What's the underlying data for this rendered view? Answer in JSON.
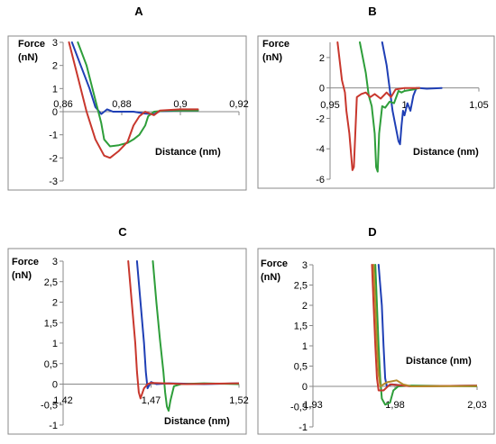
{
  "chart_data": [
    {
      "panel": "A",
      "type": "line",
      "ylabel": "Force\n(nN)",
      "xlabel": "Distance (nm)",
      "ylim": [
        -3,
        3
      ],
      "xlim": [
        0.86,
        0.92
      ],
      "yticks": [
        3,
        2,
        1,
        0,
        -1,
        -2,
        -3
      ],
      "xticks": [
        "0,86",
        "0,88",
        "0,9",
        "0,92"
      ],
      "xtick_values": [
        0.86,
        0.88,
        0.9,
        0.92
      ],
      "ytick_labels": [
        "3",
        "2",
        "1",
        "0",
        "-1",
        "-2",
        "-3"
      ],
      "grid": false,
      "series": [
        {
          "color": "#1f3fb5",
          "points": [
            [
              0.863,
              3
            ],
            [
              0.866,
              2
            ],
            [
              0.869,
              1
            ],
            [
              0.871,
              0.2
            ],
            [
              0.873,
              -0.1
            ],
            [
              0.875,
              0.1
            ],
            [
              0.877,
              0
            ],
            [
              0.88,
              0
            ],
            [
              0.884,
              0
            ],
            [
              0.888,
              -0.08
            ],
            [
              0.891,
              -0.1
            ],
            [
              0.893,
              0.02
            ],
            [
              0.9,
              0.05
            ],
            [
              0.906,
              0.05
            ]
          ]
        },
        {
          "color": "#2e9e3a",
          "points": [
            [
              0.865,
              3
            ],
            [
              0.868,
              2
            ],
            [
              0.871,
              0.5
            ],
            [
              0.873,
              -0.5
            ],
            [
              0.874,
              -1.2
            ],
            [
              0.876,
              -1.5
            ],
            [
              0.879,
              -1.45
            ],
            [
              0.882,
              -1.35
            ],
            [
              0.884,
              -1.2
            ],
            [
              0.886,
              -1.0
            ],
            [
              0.888,
              -0.6
            ],
            [
              0.889,
              -0.2
            ],
            [
              0.891,
              0
            ],
            [
              0.895,
              0.05
            ],
            [
              0.906,
              0.05
            ]
          ]
        },
        {
          "color": "#c8372d",
          "points": [
            [
              0.862,
              3
            ],
            [
              0.865,
              1.5
            ],
            [
              0.868,
              0
            ],
            [
              0.871,
              -1.2
            ],
            [
              0.874,
              -1.9
            ],
            [
              0.876,
              -2.0
            ],
            [
              0.879,
              -1.7
            ],
            [
              0.882,
              -1.3
            ],
            [
              0.884,
              -0.6
            ],
            [
              0.886,
              -0.2
            ],
            [
              0.888,
              0
            ],
            [
              0.891,
              -0.15
            ],
            [
              0.893,
              0.05
            ],
            [
              0.9,
              0.1
            ],
            [
              0.906,
              0.1
            ]
          ]
        }
      ]
    },
    {
      "panel": "B",
      "type": "line",
      "ylabel": "Force\n(nN)",
      "xlabel": "Distance (nm)",
      "ylim": [
        -6,
        3
      ],
      "xlim": [
        0.95,
        1.05
      ],
      "yticks": [
        2,
        0,
        -2,
        -4,
        -6
      ],
      "xticks": [
        "0,95",
        "1",
        "1,05"
      ],
      "xtick_values": [
        0.95,
        1.0,
        1.05
      ],
      "ytick_labels": [
        "2",
        "0",
        "-2",
        "-4",
        "-6"
      ],
      "grid": false,
      "series": [
        {
          "color": "#1f3fb5",
          "points": [
            [
              0.985,
              3
            ],
            [
              0.988,
              1.5
            ],
            [
              0.99,
              0
            ],
            [
              0.992,
              -1.5
            ],
            [
              0.994,
              -2.5
            ],
            [
              0.996,
              -3.5
            ],
            [
              0.997,
              -3.7
            ],
            [
              0.998,
              -2.5
            ],
            [
              0.999,
              -1.5
            ],
            [
              1.0,
              -1.8
            ],
            [
              1.002,
              -1.0
            ],
            [
              1.004,
              -1.5
            ],
            [
              1.006,
              -0.5
            ],
            [
              1.008,
              0
            ],
            [
              1.01,
              0
            ],
            [
              1.015,
              -0.05
            ],
            [
              1.025,
              0
            ]
          ]
        },
        {
          "color": "#2e9e3a",
          "points": [
            [
              0.97,
              3
            ],
            [
              0.974,
              1
            ],
            [
              0.976,
              -0.5
            ],
            [
              0.978,
              -1.2
            ],
            [
              0.98,
              -3
            ],
            [
              0.981,
              -5.2
            ],
            [
              0.982,
              -5.5
            ],
            [
              0.983,
              -3
            ],
            [
              0.985,
              -1.2
            ],
            [
              0.987,
              -1.3
            ],
            [
              0.99,
              -0.9
            ],
            [
              0.993,
              -1.0
            ],
            [
              0.996,
              -0.2
            ],
            [
              0.998,
              -0.3
            ],
            [
              1.0,
              -0.2
            ],
            [
              1.006,
              -0.1
            ],
            [
              1.01,
              0
            ]
          ]
        },
        {
          "color": "#c8372d",
          "points": [
            [
              0.955,
              3
            ],
            [
              0.958,
              0.5
            ],
            [
              0.96,
              -0.3
            ],
            [
              0.961,
              -1.5
            ],
            [
              0.963,
              -3
            ],
            [
              0.965,
              -5.4
            ],
            [
              0.966,
              -5.2
            ],
            [
              0.968,
              -0.6
            ],
            [
              0.971,
              -0.4
            ],
            [
              0.974,
              -0.3
            ],
            [
              0.977,
              -0.6
            ],
            [
              0.98,
              -0.4
            ],
            [
              0.984,
              -0.7
            ],
            [
              0.988,
              -0.3
            ],
            [
              0.991,
              -0.6
            ],
            [
              0.994,
              -0.1
            ],
            [
              1.0,
              0
            ],
            [
              1.01,
              0
            ]
          ]
        }
      ]
    },
    {
      "panel": "C",
      "type": "line",
      "ylabel": "Force\n(nN)",
      "xlabel": "Distance (nm)",
      "ylim": [
        -1,
        3
      ],
      "xlim": [
        1.42,
        1.52
      ],
      "yticks": [
        3,
        2.5,
        2,
        1.5,
        1,
        0.5,
        0,
        -0.5,
        -1
      ],
      "xticks": [
        "1,42",
        "1,47",
        "1,52"
      ],
      "xtick_values": [
        1.42,
        1.47,
        1.52
      ],
      "ytick_labels": [
        "3",
        "2,5",
        "2",
        "1,5",
        "1",
        "0,5",
        "0",
        "-0,5",
        "-1"
      ],
      "grid": false,
      "series": [
        {
          "color": "#1f3fb5",
          "points": [
            [
              1.462,
              3
            ],
            [
              1.464,
              2
            ],
            [
              1.466,
              1
            ],
            [
              1.467,
              0.3
            ],
            [
              1.468,
              -0.1
            ],
            [
              1.47,
              0.05
            ],
            [
              1.473,
              0
            ],
            [
              1.48,
              0.02
            ],
            [
              1.5,
              0
            ],
            [
              1.52,
              0.02
            ]
          ]
        },
        {
          "color": "#2e9e3a",
          "points": [
            [
              1.471,
              3
            ],
            [
              1.473,
              2
            ],
            [
              1.475,
              1.1
            ],
            [
              1.477,
              0.3
            ],
            [
              1.478,
              -0.2
            ],
            [
              1.479,
              -0.55
            ],
            [
              1.48,
              -0.65
            ],
            [
              1.481,
              -0.4
            ],
            [
              1.483,
              -0.05
            ],
            [
              1.487,
              0
            ],
            [
              1.5,
              0.02
            ],
            [
              1.52,
              0
            ]
          ]
        },
        {
          "color": "#c8372d",
          "points": [
            [
              1.457,
              3
            ],
            [
              1.459,
              2
            ],
            [
              1.461,
              1
            ],
            [
              1.462,
              0.3
            ],
            [
              1.463,
              -0.2
            ],
            [
              1.464,
              -0.35
            ],
            [
              1.466,
              -0.1
            ],
            [
              1.468,
              0
            ],
            [
              1.47,
              0.03
            ],
            [
              1.49,
              0
            ],
            [
              1.52,
              0.02
            ]
          ]
        }
      ]
    },
    {
      "panel": "D",
      "type": "line",
      "ylabel": "Force\n(nN)",
      "xlabel": "Distance (nm)",
      "ylim": [
        -1,
        3
      ],
      "xlim": [
        1.93,
        2.03
      ],
      "yticks": [
        3,
        2.5,
        2,
        1.5,
        1,
        0.5,
        0,
        -0.5,
        -1
      ],
      "xticks": [
        "1,93",
        "1,98",
        "2,03"
      ],
      "xtick_values": [
        1.93,
        1.98,
        2.03
      ],
      "ytick_labels": [
        "3",
        "2,5",
        "2",
        "1,5",
        "1",
        "0,5",
        "0",
        "-0,5",
        "-1"
      ],
      "grid": false,
      "series": [
        {
          "color": "#1f3fb5",
          "points": [
            [
              1.97,
              3
            ],
            [
              1.972,
              2
            ],
            [
              1.973,
              1
            ],
            [
              1.974,
              0.2
            ],
            [
              1.975,
              0
            ],
            [
              1.978,
              0.05
            ],
            [
              1.99,
              0
            ],
            [
              2.03,
              0.02
            ]
          ]
        },
        {
          "color": "#2e9e3a",
          "points": [
            [
              1.968,
              3
            ],
            [
              1.969,
              2
            ],
            [
              1.97,
              1
            ],
            [
              1.971,
              0.2
            ],
            [
              1.972,
              -0.3
            ],
            [
              1.974,
              -0.45
            ],
            [
              1.977,
              -0.4
            ],
            [
              1.979,
              -0.1
            ],
            [
              1.982,
              0
            ],
            [
              1.99,
              0.02
            ],
            [
              2.03,
              0
            ]
          ]
        },
        {
          "color": "#c8372d",
          "points": [
            [
              1.966,
              3
            ],
            [
              1.967,
              2
            ],
            [
              1.968,
              1
            ],
            [
              1.969,
              0.2
            ],
            [
              1.97,
              -0.1
            ],
            [
              1.973,
              -0.1
            ],
            [
              1.977,
              0.05
            ],
            [
              1.99,
              0
            ],
            [
              2.03,
              0.02
            ]
          ]
        },
        {
          "color": "#b58a2a",
          "points": [
            [
              1.967,
              3
            ],
            [
              1.968,
              2
            ],
            [
              1.969,
              1
            ],
            [
              1.97,
              0.3
            ],
            [
              1.971,
              0
            ],
            [
              1.975,
              0.1
            ],
            [
              1.981,
              0.15
            ],
            [
              1.985,
              0.05
            ],
            [
              1.99,
              0
            ],
            [
              2.03,
              0.01
            ]
          ]
        }
      ]
    }
  ]
}
